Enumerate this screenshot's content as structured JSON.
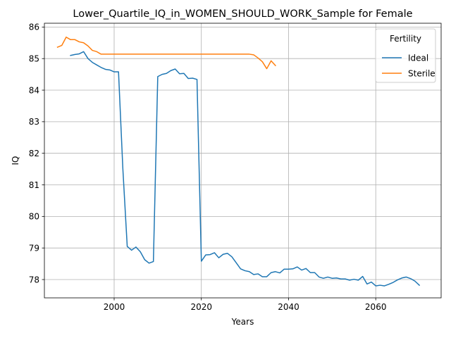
{
  "chart_data": {
    "type": "line",
    "title": "Lower_Quartile_IQ_in_WOMEN_SHOULD_WORK_Sample for Female",
    "xlabel": "Years",
    "ylabel": "IQ",
    "xlim": [
      1984,
      2075
    ],
    "ylim": [
      77.42,
      86.12
    ],
    "xticks": [
      2000,
      2020,
      2040,
      2060
    ],
    "yticks": [
      78,
      79,
      80,
      81,
      82,
      83,
      84,
      85,
      86
    ],
    "grid": true,
    "legend": {
      "title": "Fertility",
      "position": "top-right"
    },
    "series": [
      {
        "name": "Ideal",
        "color": "#1f77b4",
        "x": [
          1990,
          1991,
          1992,
          1993,
          1994,
          1995,
          1996,
          1997,
          1998,
          1999,
          2000,
          2001,
          2002,
          2003,
          2004,
          2005,
          2006,
          2007,
          2008,
          2009,
          2010,
          2011,
          2012,
          2013,
          2014,
          2015,
          2016,
          2017,
          2018,
          2019,
          2020,
          2021,
          2022,
          2023,
          2024,
          2025,
          2026,
          2027,
          2028,
          2029,
          2030,
          2031,
          2032,
          2033,
          2034,
          2035,
          2036,
          2037,
          2038,
          2039,
          2040,
          2041,
          2042,
          2043,
          2044,
          2045,
          2046,
          2047,
          2048,
          2049,
          2050,
          2051,
          2052,
          2053,
          2054,
          2055,
          2056,
          2057,
          2058,
          2059,
          2060,
          2061,
          2062,
          2063,
          2064,
          2065,
          2066,
          2067,
          2068,
          2069,
          2070
        ],
        "values": [
          85.1,
          85.13,
          85.15,
          85.22,
          85.0,
          84.88,
          84.8,
          84.72,
          84.66,
          84.64,
          84.58,
          84.58,
          81.5,
          79.05,
          78.93,
          79.03,
          78.88,
          78.63,
          78.52,
          78.57,
          84.43,
          84.5,
          84.53,
          84.62,
          84.67,
          84.52,
          84.53,
          84.37,
          84.38,
          84.34,
          78.58,
          78.78,
          78.79,
          78.85,
          78.69,
          78.8,
          78.83,
          78.72,
          78.53,
          78.34,
          78.28,
          78.25,
          78.16,
          78.18,
          78.09,
          78.09,
          78.22,
          78.25,
          78.21,
          78.33,
          78.33,
          78.34,
          78.4,
          78.3,
          78.35,
          78.22,
          78.22,
          78.08,
          78.04,
          78.08,
          78.04,
          78.05,
          78.02,
          78.02,
          77.98,
          78.01,
          77.98,
          78.1,
          77.86,
          77.92,
          77.8,
          77.82,
          77.8,
          77.85,
          77.91,
          77.99,
          78.05,
          78.08,
          78.03,
          77.95,
          77.82
        ]
      },
      {
        "name": "Sterile",
        "color": "#ff7f0e",
        "x": [
          1987,
          1988,
          1989,
          1990,
          1991,
          1992,
          1993,
          1994,
          1995,
          1996,
          1997,
          1998,
          1999,
          2000,
          2001,
          2002,
          2003,
          2004,
          2005,
          2006,
          2007,
          2008,
          2009,
          2010,
          2011,
          2012,
          2013,
          2014,
          2015,
          2016,
          2017,
          2018,
          2019,
          2020,
          2021,
          2022,
          2023,
          2024,
          2025,
          2026,
          2027,
          2028,
          2029,
          2030,
          2031,
          2032,
          2033,
          2034,
          2035,
          2036,
          2037
        ],
        "values": [
          85.36,
          85.42,
          85.68,
          85.6,
          85.6,
          85.53,
          85.5,
          85.4,
          85.26,
          85.22,
          85.14,
          85.14,
          85.14,
          85.14,
          85.14,
          85.14,
          85.14,
          85.14,
          85.14,
          85.14,
          85.14,
          85.14,
          85.14,
          85.14,
          85.14,
          85.14,
          85.14,
          85.14,
          85.14,
          85.14,
          85.14,
          85.14,
          85.14,
          85.14,
          85.14,
          85.14,
          85.14,
          85.14,
          85.14,
          85.14,
          85.14,
          85.14,
          85.14,
          85.14,
          85.14,
          85.12,
          85.02,
          84.9,
          84.68,
          84.93,
          84.78
        ]
      }
    ]
  }
}
